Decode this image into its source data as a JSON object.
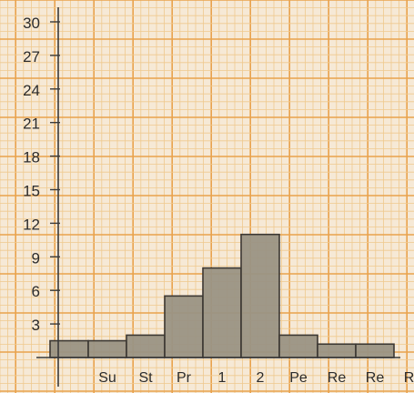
{
  "chart_data": {
    "type": "bar",
    "categories": [
      "",
      "Su",
      "St",
      "Pr",
      "1",
      "2",
      "Pe",
      "Re",
      "Re",
      "Re"
    ],
    "values": [
      1.5,
      1.5,
      2,
      5.5,
      8,
      11,
      2,
      1.2,
      1.2,
      0
    ],
    "ylim": [
      0,
      30
    ],
    "yticks": [
      "3",
      "6",
      "9",
      "12",
      "15",
      "18",
      "21",
      "24",
      "27",
      "30"
    ],
    "grid": true,
    "title": "",
    "xlabel": "",
    "ylabel": "",
    "colors": {
      "paper": "#f6e9d6",
      "grid_minor": "#efc98e",
      "grid_major": "#e9a24c",
      "bar_fill": "#9a9384",
      "bar_stroke": "#3c3833",
      "axis": "#3a3a3a"
    }
  }
}
